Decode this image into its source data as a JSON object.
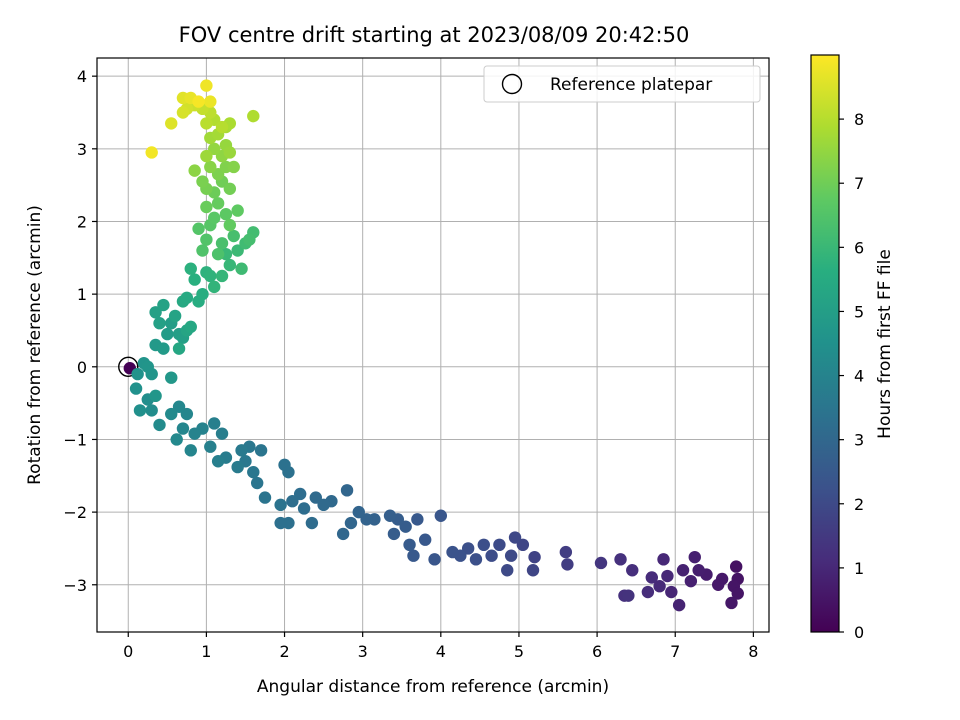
{
  "chart_data": {
    "type": "scatter",
    "title": "FOV centre drift starting at 2023/08/09 20:42:50",
    "xlabel": "Angular distance from reference (arcmin)",
    "ylabel": "Rotation from reference (arcmin)",
    "xlim": [
      -0.4,
      8.2
    ],
    "ylim": [
      -3.65,
      4.25
    ],
    "xticks": [
      0,
      1,
      2,
      3,
      4,
      5,
      6,
      7,
      8
    ],
    "yticks": [
      -3,
      -2,
      -1,
      0,
      1,
      2,
      3,
      4
    ],
    "grid": true,
    "legend": {
      "placement": "top-right",
      "label": "Reference platepar"
    },
    "colorbar": {
      "label": "Hours from first FF file",
      "range": [
        0,
        9.0
      ],
      "ticks": [
        0,
        1,
        2,
        3,
        4,
        5,
        6,
        7,
        8
      ],
      "colormap": "viridis"
    },
    "reference_point": {
      "x": 0,
      "y": 0
    },
    "series": [
      {
        "points": [
          {
            "x": 0.02,
            "y": -0.02,
            "t": 0.0
          },
          {
            "x": 7.78,
            "y": -2.75,
            "t": 0.4
          },
          {
            "x": 7.8,
            "y": -2.92,
            "t": 0.45
          },
          {
            "x": 7.75,
            "y": -3.02,
            "t": 0.5
          },
          {
            "x": 7.8,
            "y": -3.12,
            "t": 0.5
          },
          {
            "x": 7.72,
            "y": -3.25,
            "t": 0.55
          },
          {
            "x": 7.6,
            "y": -2.92,
            "t": 0.6
          },
          {
            "x": 7.55,
            "y": -3.0,
            "t": 0.6
          },
          {
            "x": 7.4,
            "y": -2.86,
            "t": 0.7
          },
          {
            "x": 7.3,
            "y": -2.8,
            "t": 0.75
          },
          {
            "x": 7.25,
            "y": -2.62,
            "t": 0.8
          },
          {
            "x": 7.2,
            "y": -2.95,
            "t": 0.8
          },
          {
            "x": 7.1,
            "y": -2.8,
            "t": 0.85
          },
          {
            "x": 7.05,
            "y": -3.28,
            "t": 0.9
          },
          {
            "x": 6.95,
            "y": -3.1,
            "t": 0.95
          },
          {
            "x": 6.9,
            "y": -2.88,
            "t": 1.0
          },
          {
            "x": 6.85,
            "y": -2.65,
            "t": 1.0
          },
          {
            "x": 6.8,
            "y": -3.02,
            "t": 1.05
          },
          {
            "x": 6.7,
            "y": -2.9,
            "t": 1.1
          },
          {
            "x": 6.65,
            "y": -3.1,
            "t": 1.15
          },
          {
            "x": 6.45,
            "y": -2.8,
            "t": 1.2
          },
          {
            "x": 6.3,
            "y": -2.65,
            "t": 1.25
          },
          {
            "x": 6.35,
            "y": -3.15,
            "t": 1.25
          },
          {
            "x": 6.4,
            "y": -3.15,
            "t": 1.3
          },
          {
            "x": 6.05,
            "y": -2.7,
            "t": 1.4
          },
          {
            "x": 5.6,
            "y": -2.55,
            "t": 1.6
          },
          {
            "x": 5.62,
            "y": -2.72,
            "t": 1.6
          },
          {
            "x": 5.2,
            "y": -2.62,
            "t": 1.8
          },
          {
            "x": 5.18,
            "y": -2.8,
            "t": 1.85
          },
          {
            "x": 5.05,
            "y": -2.45,
            "t": 1.9
          },
          {
            "x": 4.95,
            "y": -2.35,
            "t": 1.95
          },
          {
            "x": 4.9,
            "y": -2.6,
            "t": 2.0
          },
          {
            "x": 4.85,
            "y": -2.8,
            "t": 2.0
          },
          {
            "x": 4.75,
            "y": -2.45,
            "t": 2.05
          },
          {
            "x": 4.65,
            "y": -2.6,
            "t": 2.1
          },
          {
            "x": 4.55,
            "y": -2.45,
            "t": 2.15
          },
          {
            "x": 4.45,
            "y": -2.65,
            "t": 2.2
          },
          {
            "x": 4.35,
            "y": -2.5,
            "t": 2.2
          },
          {
            "x": 4.25,
            "y": -2.6,
            "t": 2.25
          },
          {
            "x": 4.15,
            "y": -2.55,
            "t": 2.3
          },
          {
            "x": 4.0,
            "y": -2.05,
            "t": 2.4
          },
          {
            "x": 3.92,
            "y": -2.65,
            "t": 2.4
          },
          {
            "x": 3.8,
            "y": -2.38,
            "t": 2.45
          },
          {
            "x": 3.7,
            "y": -2.1,
            "t": 2.5
          },
          {
            "x": 3.65,
            "y": -2.6,
            "t": 2.5
          },
          {
            "x": 3.6,
            "y": -2.45,
            "t": 2.55
          },
          {
            "x": 3.55,
            "y": -2.2,
            "t": 2.6
          },
          {
            "x": 3.45,
            "y": -2.1,
            "t": 2.65
          },
          {
            "x": 3.4,
            "y": -2.3,
            "t": 2.65
          },
          {
            "x": 3.35,
            "y": -2.05,
            "t": 2.7
          },
          {
            "x": 3.15,
            "y": -2.1,
            "t": 2.8
          },
          {
            "x": 3.05,
            "y": -2.1,
            "t": 2.85
          },
          {
            "x": 2.95,
            "y": -2.0,
            "t": 2.9
          },
          {
            "x": 2.85,
            "y": -2.15,
            "t": 2.95
          },
          {
            "x": 2.8,
            "y": -1.7,
            "t": 2.95
          },
          {
            "x": 2.75,
            "y": -2.3,
            "t": 3.0
          },
          {
            "x": 2.6,
            "y": -1.85,
            "t": 3.05
          },
          {
            "x": 2.5,
            "y": -1.9,
            "t": 3.1
          },
          {
            "x": 2.4,
            "y": -1.8,
            "t": 3.1
          },
          {
            "x": 2.35,
            "y": -2.15,
            "t": 3.15
          },
          {
            "x": 2.25,
            "y": -1.95,
            "t": 3.2
          },
          {
            "x": 2.2,
            "y": -1.75,
            "t": 3.2
          },
          {
            "x": 2.1,
            "y": -1.85,
            "t": 3.25
          },
          {
            "x": 2.05,
            "y": -2.15,
            "t": 3.3
          },
          {
            "x": 1.95,
            "y": -2.15,
            "t": 3.3
          },
          {
            "x": 2.0,
            "y": -1.35,
            "t": 3.35
          },
          {
            "x": 2.05,
            "y": -1.45,
            "t": 3.35
          },
          {
            "x": 1.95,
            "y": -1.9,
            "t": 3.4
          },
          {
            "x": 1.75,
            "y": -1.8,
            "t": 3.45
          },
          {
            "x": 1.65,
            "y": -1.6,
            "t": 3.5
          },
          {
            "x": 1.7,
            "y": -1.15,
            "t": 3.5
          },
          {
            "x": 1.6,
            "y": -1.45,
            "t": 3.55
          },
          {
            "x": 1.55,
            "y": -1.1,
            "t": 3.55
          },
          {
            "x": 1.5,
            "y": -1.3,
            "t": 3.6
          },
          {
            "x": 1.45,
            "y": -1.15,
            "t": 3.65
          },
          {
            "x": 1.4,
            "y": -1.38,
            "t": 3.7
          },
          {
            "x": 1.25,
            "y": -1.25,
            "t": 3.75
          },
          {
            "x": 1.2,
            "y": -0.92,
            "t": 3.8
          },
          {
            "x": 1.15,
            "y": -1.3,
            "t": 3.85
          },
          {
            "x": 1.1,
            "y": -0.78,
            "t": 3.85
          },
          {
            "x": 1.05,
            "y": -1.1,
            "t": 3.9
          },
          {
            "x": 0.95,
            "y": -0.85,
            "t": 3.95
          },
          {
            "x": 0.85,
            "y": -0.92,
            "t": 4.0
          },
          {
            "x": 0.8,
            "y": -1.15,
            "t": 4.05
          },
          {
            "x": 0.75,
            "y": -0.65,
            "t": 4.1
          },
          {
            "x": 0.7,
            "y": -0.85,
            "t": 4.1
          },
          {
            "x": 0.65,
            "y": -0.55,
            "t": 4.15
          },
          {
            "x": 0.62,
            "y": -1.0,
            "t": 4.2
          },
          {
            "x": 0.55,
            "y": -0.65,
            "t": 4.25
          },
          {
            "x": 0.4,
            "y": -0.8,
            "t": 4.3
          },
          {
            "x": 0.3,
            "y": -0.6,
            "t": 4.35
          },
          {
            "x": 0.25,
            "y": -0.45,
            "t": 4.4
          },
          {
            "x": 0.15,
            "y": -0.6,
            "t": 4.45
          },
          {
            "x": 0.1,
            "y": -0.3,
            "t": 4.5
          },
          {
            "x": 0.12,
            "y": -0.1,
            "t": 4.55
          },
          {
            "x": 0.2,
            "y": 0.05,
            "t": 4.6
          },
          {
            "x": 0.25,
            "y": 0.0,
            "t": 4.65
          },
          {
            "x": 0.3,
            "y": -0.1,
            "t": 4.65
          },
          {
            "x": 0.35,
            "y": -0.4,
            "t": 4.7
          },
          {
            "x": 0.55,
            "y": -0.15,
            "t": 4.75
          },
          {
            "x": 0.35,
            "y": 0.3,
            "t": 4.8
          },
          {
            "x": 0.45,
            "y": 0.25,
            "t": 4.85
          },
          {
            "x": 0.5,
            "y": 0.45,
            "t": 4.9
          },
          {
            "x": 0.55,
            "y": 0.6,
            "t": 4.95
          },
          {
            "x": 0.65,
            "y": 0.45,
            "t": 5.0
          },
          {
            "x": 0.7,
            "y": 0.4,
            "t": 5.05
          },
          {
            "x": 0.4,
            "y": 0.6,
            "t": 5.1
          },
          {
            "x": 0.35,
            "y": 0.75,
            "t": 5.1
          },
          {
            "x": 0.45,
            "y": 0.85,
            "t": 5.15
          },
          {
            "x": 0.6,
            "y": 0.7,
            "t": 5.2
          },
          {
            "x": 0.75,
            "y": 0.5,
            "t": 5.25
          },
          {
            "x": 0.65,
            "y": 0.25,
            "t": 5.3
          },
          {
            "x": 0.8,
            "y": 0.55,
            "t": 5.35
          },
          {
            "x": 0.7,
            "y": 0.9,
            "t": 5.4
          },
          {
            "x": 0.75,
            "y": 0.95,
            "t": 5.45
          },
          {
            "x": 0.9,
            "y": 0.9,
            "t": 5.55
          },
          {
            "x": 0.95,
            "y": 1.0,
            "t": 5.6
          },
          {
            "x": 0.85,
            "y": 1.2,
            "t": 5.65
          },
          {
            "x": 0.8,
            "y": 1.35,
            "t": 5.7
          },
          {
            "x": 1.0,
            "y": 1.3,
            "t": 5.75
          },
          {
            "x": 1.05,
            "y": 1.25,
            "t": 5.8
          },
          {
            "x": 1.1,
            "y": 1.1,
            "t": 5.85
          },
          {
            "x": 1.2,
            "y": 1.25,
            "t": 5.9
          },
          {
            "x": 1.3,
            "y": 1.4,
            "t": 5.95
          },
          {
            "x": 1.25,
            "y": 1.55,
            "t": 6.0
          },
          {
            "x": 1.4,
            "y": 1.6,
            "t": 6.05
          },
          {
            "x": 1.45,
            "y": 1.35,
            "t": 6.1
          },
          {
            "x": 1.5,
            "y": 1.7,
            "t": 6.15
          },
          {
            "x": 1.6,
            "y": 1.85,
            "t": 6.2
          },
          {
            "x": 1.55,
            "y": 1.75,
            "t": 6.25
          },
          {
            "x": 1.35,
            "y": 1.8,
            "t": 6.3
          },
          {
            "x": 1.2,
            "y": 1.7,
            "t": 6.35
          },
          {
            "x": 1.15,
            "y": 1.55,
            "t": 6.4
          },
          {
            "x": 0.95,
            "y": 1.6,
            "t": 6.45
          },
          {
            "x": 1.0,
            "y": 1.75,
            "t": 6.5
          },
          {
            "x": 0.9,
            "y": 1.9,
            "t": 6.55
          },
          {
            "x": 1.05,
            "y": 1.95,
            "t": 6.6
          },
          {
            "x": 1.1,
            "y": 2.05,
            "t": 6.65
          },
          {
            "x": 1.25,
            "y": 2.1,
            "t": 6.7
          },
          {
            "x": 1.4,
            "y": 2.15,
            "t": 6.75
          },
          {
            "x": 1.3,
            "y": 1.95,
            "t": 6.8
          },
          {
            "x": 1.15,
            "y": 2.25,
            "t": 6.85
          },
          {
            "x": 1.0,
            "y": 2.2,
            "t": 6.9
          },
          {
            "x": 1.1,
            "y": 2.4,
            "t": 6.95
          },
          {
            "x": 1.2,
            "y": 2.55,
            "t": 7.0
          },
          {
            "x": 1.3,
            "y": 2.45,
            "t": 7.05
          },
          {
            "x": 1.0,
            "y": 2.45,
            "t": 7.1
          },
          {
            "x": 0.95,
            "y": 2.55,
            "t": 7.15
          },
          {
            "x": 1.15,
            "y": 2.65,
            "t": 7.2
          },
          {
            "x": 1.25,
            "y": 2.75,
            "t": 7.25
          },
          {
            "x": 1.35,
            "y": 2.75,
            "t": 7.3
          },
          {
            "x": 1.05,
            "y": 2.75,
            "t": 7.35
          },
          {
            "x": 0.85,
            "y": 2.7,
            "t": 7.4
          },
          {
            "x": 1.2,
            "y": 2.9,
            "t": 7.45
          },
          {
            "x": 1.1,
            "y": 3.0,
            "t": 7.5
          },
          {
            "x": 1.25,
            "y": 3.05,
            "t": 7.55
          },
          {
            "x": 1.3,
            "y": 2.95,
            "t": 7.6
          },
          {
            "x": 1.0,
            "y": 2.9,
            "t": 7.65
          },
          {
            "x": 1.05,
            "y": 3.15,
            "t": 7.7
          },
          {
            "x": 1.15,
            "y": 3.2,
            "t": 7.75
          },
          {
            "x": 1.25,
            "y": 3.3,
            "t": 7.8
          },
          {
            "x": 1.3,
            "y": 3.35,
            "t": 7.85
          },
          {
            "x": 1.6,
            "y": 3.45,
            "t": 7.9
          },
          {
            "x": 1.1,
            "y": 3.4,
            "t": 7.95
          },
          {
            "x": 1.2,
            "y": 3.3,
            "t": 8.0
          },
          {
            "x": 1.0,
            "y": 3.35,
            "t": 8.05
          },
          {
            "x": 1.05,
            "y": 3.5,
            "t": 8.1
          },
          {
            "x": 0.95,
            "y": 3.55,
            "t": 8.2
          },
          {
            "x": 0.85,
            "y": 3.6,
            "t": 8.3
          },
          {
            "x": 0.75,
            "y": 3.55,
            "t": 8.4
          },
          {
            "x": 0.7,
            "y": 3.5,
            "t": 8.45
          },
          {
            "x": 0.55,
            "y": 3.35,
            "t": 8.55
          },
          {
            "x": 0.7,
            "y": 3.7,
            "t": 8.6
          },
          {
            "x": 0.8,
            "y": 3.7,
            "t": 8.7
          },
          {
            "x": 1.05,
            "y": 3.65,
            "t": 8.75
          },
          {
            "x": 1.0,
            "y": 3.87,
            "t": 8.8
          },
          {
            "x": 0.3,
            "y": 2.95,
            "t": 8.85
          },
          {
            "x": 0.9,
            "y": 3.65,
            "t": 8.9
          }
        ]
      }
    ]
  }
}
